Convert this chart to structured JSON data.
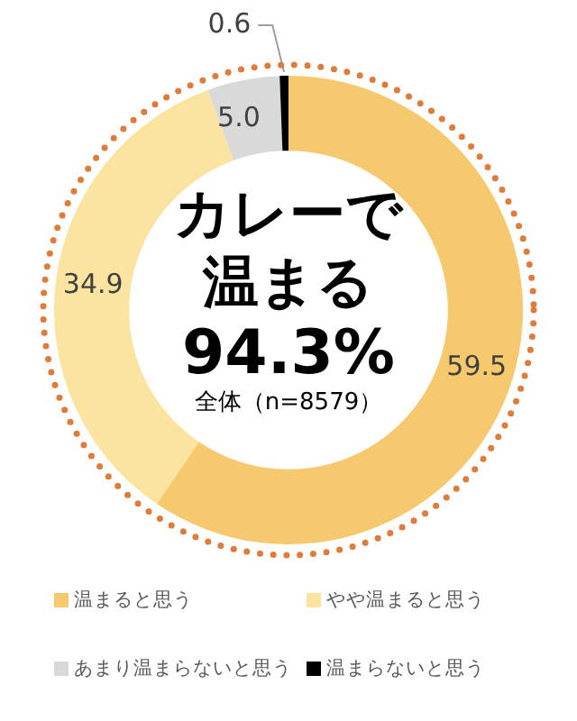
{
  "chart_data": {
    "type": "donut",
    "title": "カレーで温まる",
    "subtitle": "94.3%",
    "annotations": [
      "全体（n=8579）"
    ],
    "categories": [
      "温まると思う",
      "やや温まると思う",
      "あまり温まらないと思う",
      "温まらないと思う"
    ],
    "values": [
      59.5,
      34.9,
      5.0,
      0.6
    ],
    "colors": [
      "#f7c96f",
      "#fbe3a0",
      "#d9d9d9",
      "#000000"
    ],
    "value_labels": [
      "59.5",
      "34.9",
      "5.0",
      "0.6"
    ],
    "legend": "bottom"
  }
}
